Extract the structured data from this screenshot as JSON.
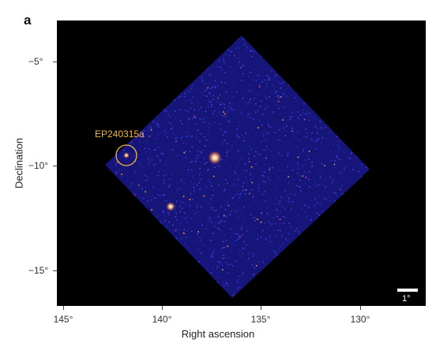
{
  "panel_label": "a",
  "axes": {
    "xlabel": "Right ascension",
    "ylabel": "Declination",
    "x_ticks": [
      "145°",
      "140°",
      "135°",
      "130°"
    ],
    "y_ticks": [
      "−5°",
      "−10°",
      "−15°"
    ]
  },
  "source": {
    "name": "EP240315a",
    "marker_color": "#f3b73a"
  },
  "scale_bar": {
    "label": "1°"
  },
  "colors": {
    "background": "#000000",
    "field_base": "#1a1a7a",
    "hot_pixel": "#ff9a3c",
    "bright_source": "#ffffff"
  }
}
